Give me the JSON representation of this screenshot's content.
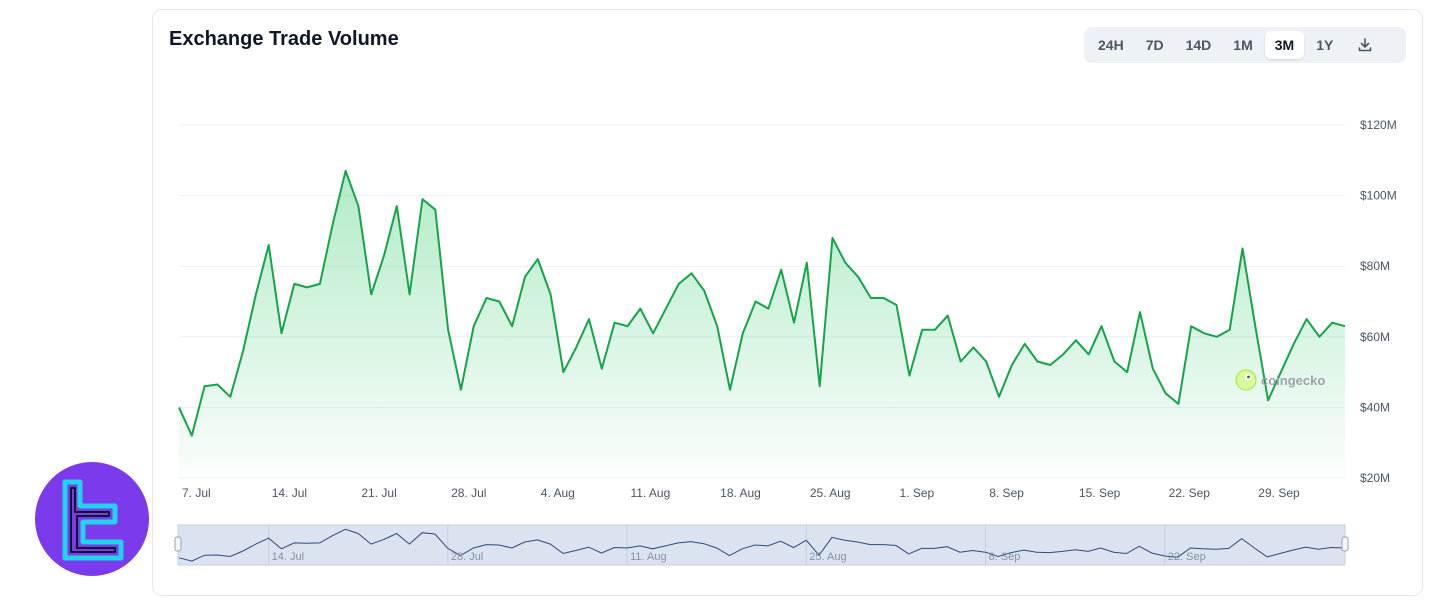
{
  "header": {
    "title": "Exchange Trade Volume"
  },
  "range_buttons": [
    {
      "label": "24H",
      "active": false
    },
    {
      "label": "7D",
      "active": false
    },
    {
      "label": "14D",
      "active": false
    },
    {
      "label": "1M",
      "active": false
    },
    {
      "label": "3M",
      "active": true
    },
    {
      "label": "1Y",
      "active": false
    }
  ],
  "icons": {
    "download": "download-icon",
    "brand_logo": "brand-logo-icon",
    "watermark": "coingecko-logo-icon"
  },
  "watermark": {
    "text": "coingecko"
  },
  "colors": {
    "line": "#16a34a",
    "fill": "#22c55e",
    "navigator_fill": "#dbe3f1",
    "navigator_line": "#2d4a7c",
    "brand": "#7c3aed",
    "brand_accent": "#22d3ee"
  },
  "chart_data": {
    "type": "area",
    "yticks": [
      "$20M",
      "$40M",
      "$60M",
      "$80M",
      "$100M",
      "$120M"
    ],
    "ytick_values": [
      20,
      40,
      60,
      80,
      100,
      120
    ],
    "ylim": [
      20,
      120
    ],
    "xticks": [
      "7. Jul",
      "14. Jul",
      "21. Jul",
      "28. Jul",
      "4. Aug",
      "11. Aug",
      "18. Aug",
      "25. Aug",
      "1. Sep",
      "8. Sep",
      "15. Sep",
      "22. Sep",
      "29. Sep"
    ],
    "navigator_ticks": [
      "14. Jul",
      "28. Jul",
      "11. Aug",
      "25. Aug",
      "8. Sep",
      "22. Sep"
    ],
    "x_start": "2024-07-07",
    "x_end": "2024-10-05",
    "values": [
      40,
      32,
      46,
      46.5,
      43,
      56,
      72,
      86,
      61,
      75,
      74,
      75,
      92,
      107,
      97,
      72,
      83,
      97,
      72,
      99,
      96,
      62,
      45,
      63,
      71,
      70,
      63,
      77,
      82,
      72,
      50,
      57,
      65,
      51,
      64,
      63,
      68,
      61,
      68,
      75,
      78,
      73,
      63,
      45,
      61,
      70,
      68,
      79,
      64,
      81,
      46,
      88,
      81,
      77,
      71,
      71,
      69,
      49,
      62,
      62,
      66,
      53,
      57,
      53,
      43,
      52,
      58,
      53,
      52,
      55,
      59,
      55,
      63,
      53,
      50,
      67,
      51,
      44,
      41,
      63,
      61,
      60,
      62,
      85,
      63,
      42,
      50,
      58,
      65,
      60,
      64,
      63
    ]
  }
}
